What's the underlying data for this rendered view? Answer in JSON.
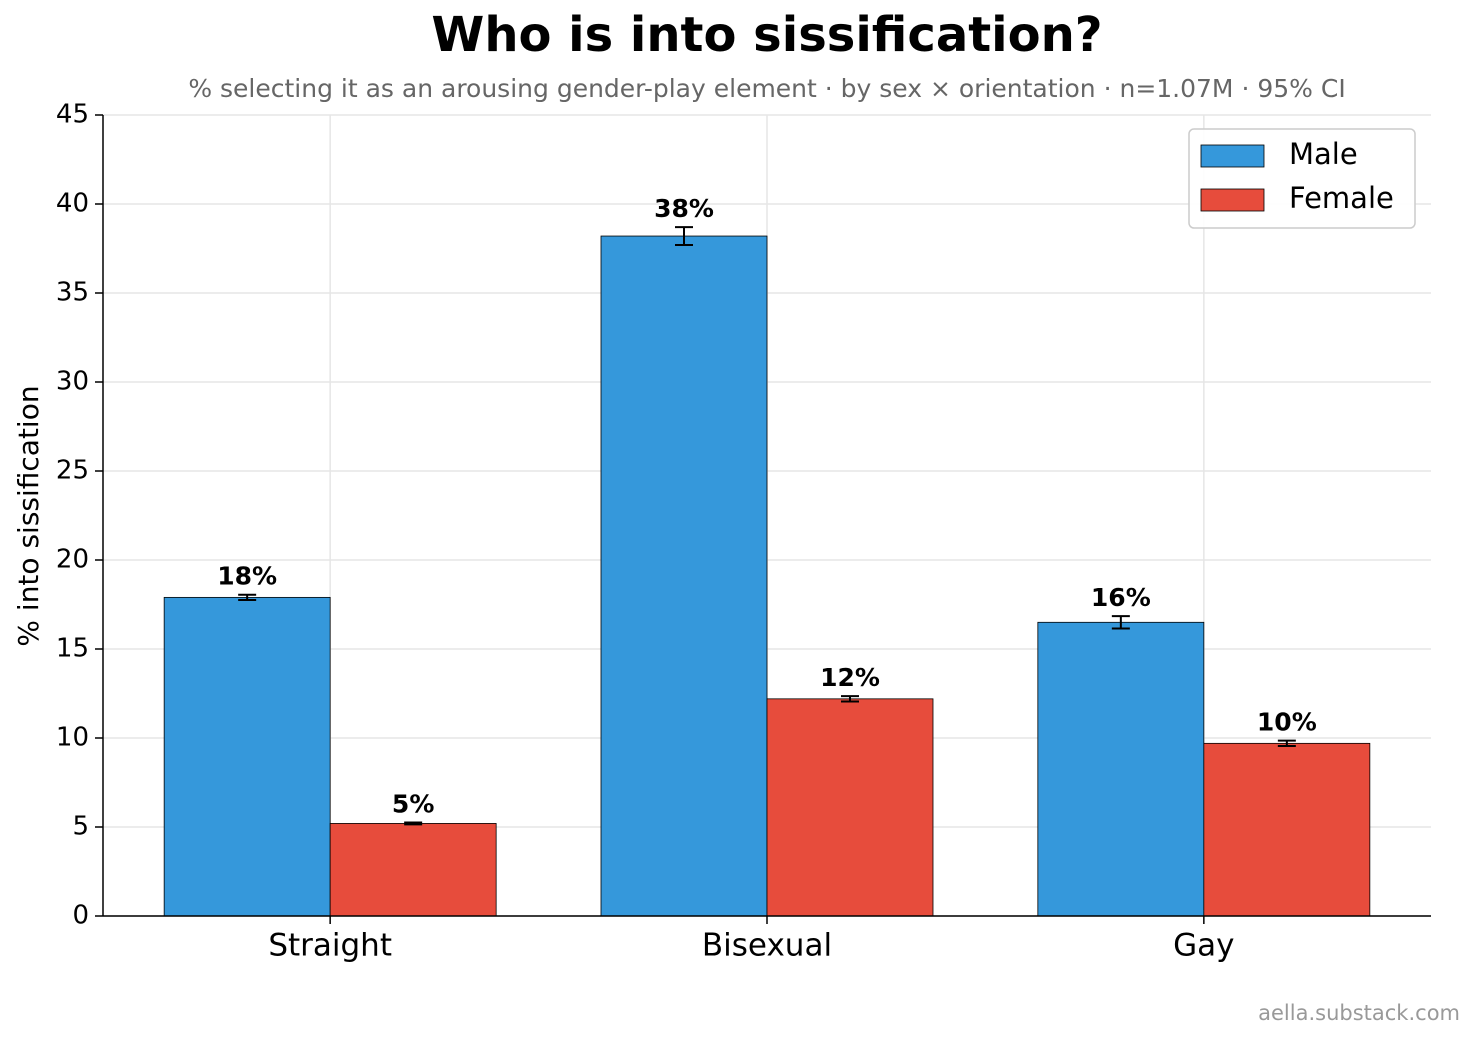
{
  "chart_data": {
    "type": "bar",
    "title": "Who is into sissification?",
    "subtitle": "% selecting it as an arousing gender-play element · by sex × orientation · n=1.07M · 95% CI",
    "y_label": "% into sissification",
    "source": "aella.substack.com",
    "categories": [
      "Straight",
      "Bisexual",
      "Gay"
    ],
    "series": [
      {
        "name": "Male",
        "color": "#3598db",
        "values": [
          17.9,
          38.2,
          16.5
        ],
        "errors": [
          0.15,
          0.5,
          0.35
        ],
        "value_labels": [
          "18%",
          "38%",
          "16%"
        ]
      },
      {
        "name": "Female",
        "color": "#e74c3c",
        "values": [
          5.2,
          12.2,
          9.7
        ],
        "errors": [
          0.05,
          0.15,
          0.15
        ],
        "value_labels": [
          "5%",
          "12%",
          "10%"
        ]
      }
    ],
    "ylim": [
      0,
      45
    ],
    "yticks": [
      0,
      5,
      10,
      15,
      20,
      25,
      30,
      35,
      40,
      45
    ],
    "grid": true,
    "legend": "upper-right"
  }
}
